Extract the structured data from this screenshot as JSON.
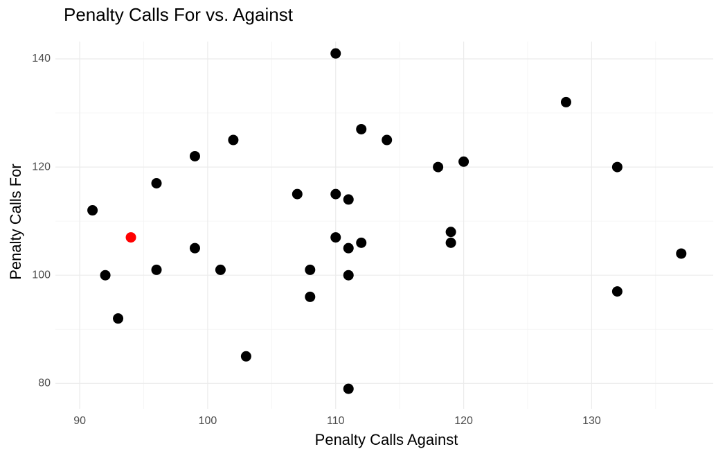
{
  "chart_data": {
    "type": "scatter",
    "title": "Penalty Calls For vs. Against",
    "x_label": "Penalty Calls Against",
    "y_label": "Penalty Calls For",
    "series": [
      {
        "color": "#000000",
        "x": [
          91,
          92,
          93,
          96,
          96,
          99,
          99,
          101,
          102,
          103,
          107,
          108,
          108,
          110,
          110,
          110,
          111,
          111,
          111,
          111,
          112,
          112,
          114,
          118,
          119,
          119,
          120,
          128,
          132,
          132,
          137
        ],
        "values": [
          112,
          100,
          92,
          117,
          101,
          122,
          105,
          101,
          125,
          85,
          115,
          101,
          96,
          141,
          115,
          107,
          114,
          105,
          100,
          79,
          127,
          106,
          125,
          120,
          108,
          106,
          121,
          132,
          120,
          97,
          104
        ]
      },
      {
        "color": "#ff0000",
        "x": [
          94
        ],
        "values": [
          107
        ]
      }
    ],
    "xlim": [
      88.1,
      139.5
    ],
    "xticks": [
      90,
      100,
      110,
      120,
      130
    ],
    "ylim": [
      75.3,
      143.2
    ],
    "yticks": [
      80,
      100,
      120,
      140
    ],
    "grid": true
  }
}
